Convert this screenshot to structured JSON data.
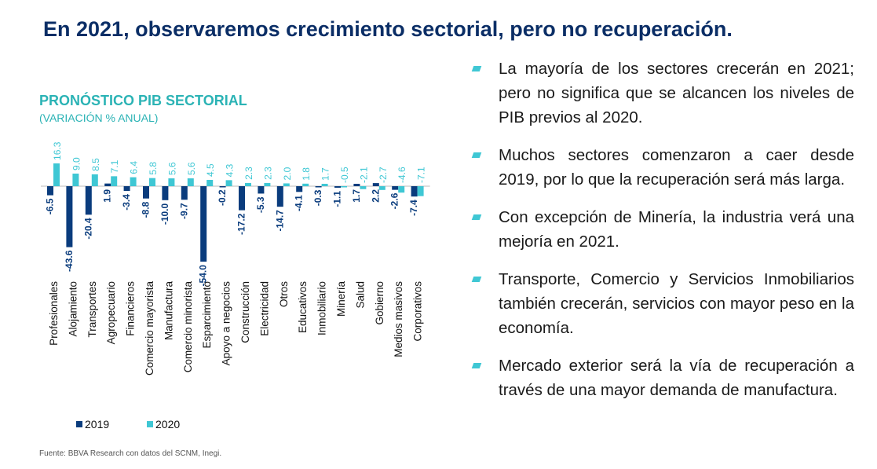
{
  "slide": {
    "title": "En 2021, observaremos crecimiento sectorial, pero no recuperación.",
    "source": "Fuente: BBVA Research con datos del SCNM, Inegi."
  },
  "bullets": [
    "La mayoría de los sectores crecerán en 2021; pero no significa que se alcancen los niveles de PIB previos al 2020.",
    "Muchos sectores comenzaron a caer desde 2019, por lo que la recuperación será más larga.",
    "Con excepción de Minería, la industria verá una mejoría en 2021.",
    "Transporte, Comercio y Servicios Inmobiliarios también crecerán, servicios con mayor peso en la economía.",
    "Mercado exterior será la vía de recuperación a través de una mayor demanda de manufactura."
  ],
  "chart_data": {
    "type": "bar",
    "title": "PRONÓSTICO PIB SECTORIAL",
    "subtitle": "(VARIACIÓN % ANUAL)",
    "categories": [
      "Profesionales",
      "Alojamiento",
      "Transportes",
      "Agropecuario",
      "Financieros",
      "Comercio mayorista",
      "Manufactura",
      "Comercio minorista",
      "Esparcimiento",
      "Apoyo a negocios",
      "Construcción",
      "Electricidad",
      "Otros",
      "Educativos",
      "Inmobiliario",
      "Minería",
      "Salud",
      "Gobierno",
      "Medios masivos",
      "Corporativos"
    ],
    "series": [
      {
        "name": "2019",
        "values": [
          -6.5,
          -43.6,
          -20.4,
          1.9,
          -3.4,
          -8.8,
          -10.0,
          -9.7,
          -54.0,
          -0.2,
          -17.2,
          -5.3,
          -14.7,
          -4.1,
          -0.3,
          -1.1,
          1.7,
          2.2,
          -2.6,
          -7.4
        ],
        "labels": [
          "-6.5",
          "-43.6",
          "-20.4",
          "1.9",
          "-3.4",
          "-8.8",
          "-10.0",
          "-9.7",
          "-54.0",
          "-0.2",
          "-17.2",
          "-5.3",
          "-14.7",
          "-4.1",
          "-0.3",
          "-1.1",
          "1.7",
          "2.2",
          "-2.6",
          "-7.4"
        ]
      },
      {
        "name": "2020",
        "values": [
          16.3,
          9.0,
          8.5,
          7.1,
          6.4,
          5.8,
          5.6,
          5.6,
          4.5,
          4.3,
          2.3,
          2.3,
          2.0,
          1.8,
          1.7,
          -0.5,
          -2.1,
          -2.7,
          -4.6,
          -7.1
        ],
        "labels": [
          "16.3",
          "9.0",
          "8.5",
          "7.1",
          "6.4",
          "5.8",
          "5.6",
          "5.6",
          "4.5",
          "4.3",
          "2.3",
          "2.3",
          "2.0",
          "1.8",
          "1.7",
          "-0.5",
          "-2.1",
          "-2.7",
          "-4.6",
          "-7.1"
        ]
      }
    ],
    "colors": {
      "2019": "#0a3c7d",
      "2020": "#3fc7d4",
      "label_2019": "#0a3c7d",
      "label_2020": "#3fc7d4"
    },
    "legend_position": "bottom-left",
    "grid": false
  }
}
